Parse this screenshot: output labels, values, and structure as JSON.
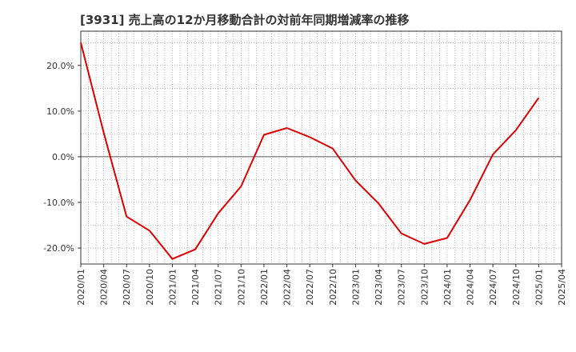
{
  "chart_data": {
    "type": "line",
    "title": "[3931]  売上高の12か月移動合計の対前年同期増減率の推移",
    "xlabel": "",
    "ylabel": "",
    "ylim": [
      -23.5,
      27.5
    ],
    "yticks": [
      20,
      10,
      0,
      -10,
      -20
    ],
    "ytick_labels": [
      "20.0%",
      "10.0%",
      "0.0%",
      "-10.0%",
      "-20.0%"
    ],
    "x_tick_labels": [
      "2020/01",
      "2020/04",
      "2020/07",
      "2020/10",
      "2021/01",
      "2021/04",
      "2021/07",
      "2021/10",
      "2022/01",
      "2022/04",
      "2022/07",
      "2022/10",
      "2023/01",
      "2023/04",
      "2023/07",
      "2023/10",
      "2024/01",
      "2024/04",
      "2024/07",
      "2024/10",
      "2025/01",
      "2025/04"
    ],
    "grid": true,
    "series": [
      {
        "name": "対前年同期増減率",
        "color": "#dd0000",
        "x": [
          "2020/01",
          "2020/04",
          "2020/07",
          "2020/10",
          "2021/01",
          "2021/04",
          "2021/07",
          "2021/10",
          "2022/01",
          "2022/04",
          "2022/07",
          "2022/10",
          "2023/01",
          "2023/04",
          "2023/07",
          "2023/10",
          "2024/01",
          "2024/04",
          "2024/07",
          "2024/10",
          "2025/01"
        ],
        "values": [
          25.0,
          5.3,
          -13.1,
          -16.2,
          -22.4,
          -20.3,
          -12.4,
          -6.5,
          4.8,
          6.3,
          4.3,
          1.8,
          -5.2,
          -10.2,
          -16.8,
          -19.1,
          -17.8,
          -9.5,
          0.5,
          5.8,
          12.9
        ]
      }
    ]
  }
}
